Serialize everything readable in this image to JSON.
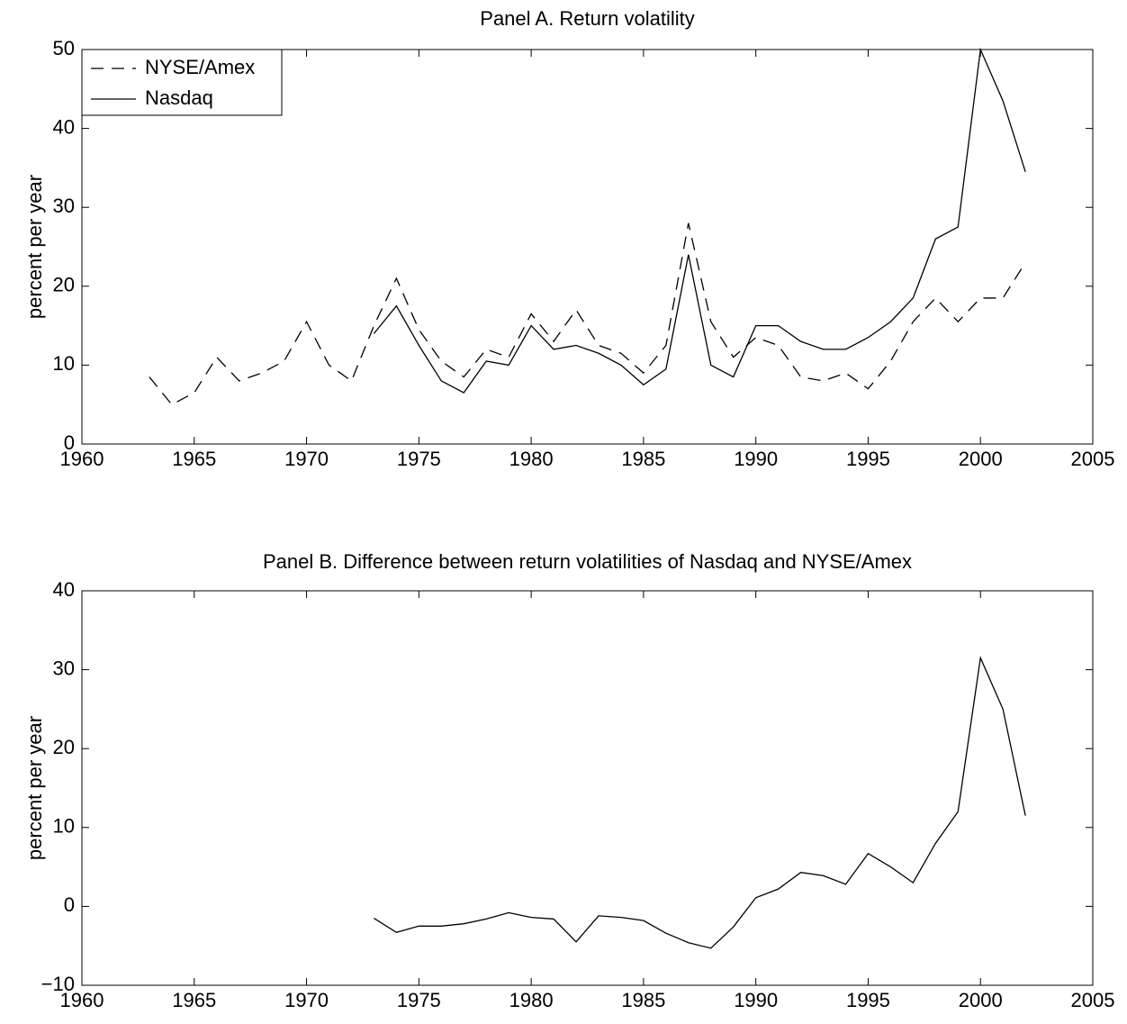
{
  "chart_data": [
    {
      "type": "line",
      "title": "Panel A. Return volatility",
      "ylabel": "percent per year",
      "x": [
        1963,
        1964,
        1965,
        1966,
        1967,
        1968,
        1969,
        1970,
        1971,
        1972,
        1973,
        1974,
        1975,
        1976,
        1977,
        1978,
        1979,
        1980,
        1981,
        1982,
        1983,
        1984,
        1985,
        1986,
        1987,
        1988,
        1989,
        1990,
        1991,
        1992,
        1993,
        1994,
        1995,
        1996,
        1997,
        1998,
        1999,
        2000,
        2001,
        2002
      ],
      "series": [
        {
          "name": "NYSE/Amex",
          "color": "#000000",
          "linestyle": "dashed",
          "values": [
            8.5,
            5,
            6.5,
            11,
            8,
            9,
            10.5,
            15.5,
            10,
            8,
            15,
            21,
            14.5,
            10.5,
            8.5,
            12,
            11,
            16.5,
            13,
            17,
            12.5,
            11.5,
            9,
            12.5,
            28,
            15.5,
            11,
            13.5,
            12.5,
            8.5,
            8,
            9,
            7,
            10.5,
            15.5,
            18.5,
            15.5,
            18.5,
            18.5,
            23
          ]
        },
        {
          "name": "Nasdaq",
          "color": "#000000",
          "linestyle": "solid",
          "values": [
            null,
            null,
            null,
            null,
            null,
            null,
            null,
            null,
            null,
            null,
            14,
            17.5,
            12.5,
            8,
            6.5,
            10.5,
            10,
            15,
            12,
            12.5,
            11.5,
            10,
            7.5,
            9.5,
            24,
            10,
            8.5,
            15,
            15,
            13,
            12,
            12,
            13.5,
            15.5,
            18.5,
            26,
            27.5,
            50,
            43.5,
            34.5
          ]
        }
      ],
      "xlim": [
        1960,
        2005
      ],
      "xticks": [
        1960,
        1965,
        1970,
        1975,
        1980,
        1985,
        1990,
        1995,
        2000,
        2005
      ],
      "ylim": [
        0,
        50
      ],
      "yticks": [
        0,
        10,
        20,
        30,
        40,
        50
      ],
      "legend": "upper left",
      "grid": false
    },
    {
      "type": "line",
      "title": "Panel B. Difference between return volatilities of Nasdaq and NYSE/Amex",
      "ylabel": "percent per year",
      "x": [
        1973,
        1974,
        1975,
        1976,
        1977,
        1978,
        1979,
        1980,
        1981,
        1982,
        1983,
        1984,
        1985,
        1986,
        1987,
        1988,
        1989,
        1990,
        1991,
        1992,
        1993,
        1994,
        1995,
        1996,
        1997,
        1998,
        1999,
        2000,
        2001,
        2002
      ],
      "series": [
        {
          "color": "#000000",
          "linestyle": "solid",
          "values": [
            -1.5,
            -3.3,
            -2.5,
            -2.5,
            -2.2,
            -1.6,
            -0.8,
            -1.4,
            -1.6,
            -4.5,
            -1.2,
            -1.4,
            -1.8,
            -3.4,
            -4.6,
            -5.3,
            -2.6,
            1.1,
            2.2,
            4.3,
            3.9,
            2.8,
            6.7,
            5,
            3,
            8,
            12,
            31.5,
            25,
            11.5
          ]
        }
      ],
      "xlim": [
        1960,
        2005
      ],
      "xticks": [
        1960,
        1965,
        1970,
        1975,
        1980,
        1985,
        1990,
        1995,
        2000,
        2005
      ],
      "ylim": [
        -10,
        40
      ],
      "yticks": [
        {
          "value": -10,
          "label": "−10"
        },
        0,
        10,
        20,
        30,
        40
      ],
      "grid": false
    }
  ]
}
